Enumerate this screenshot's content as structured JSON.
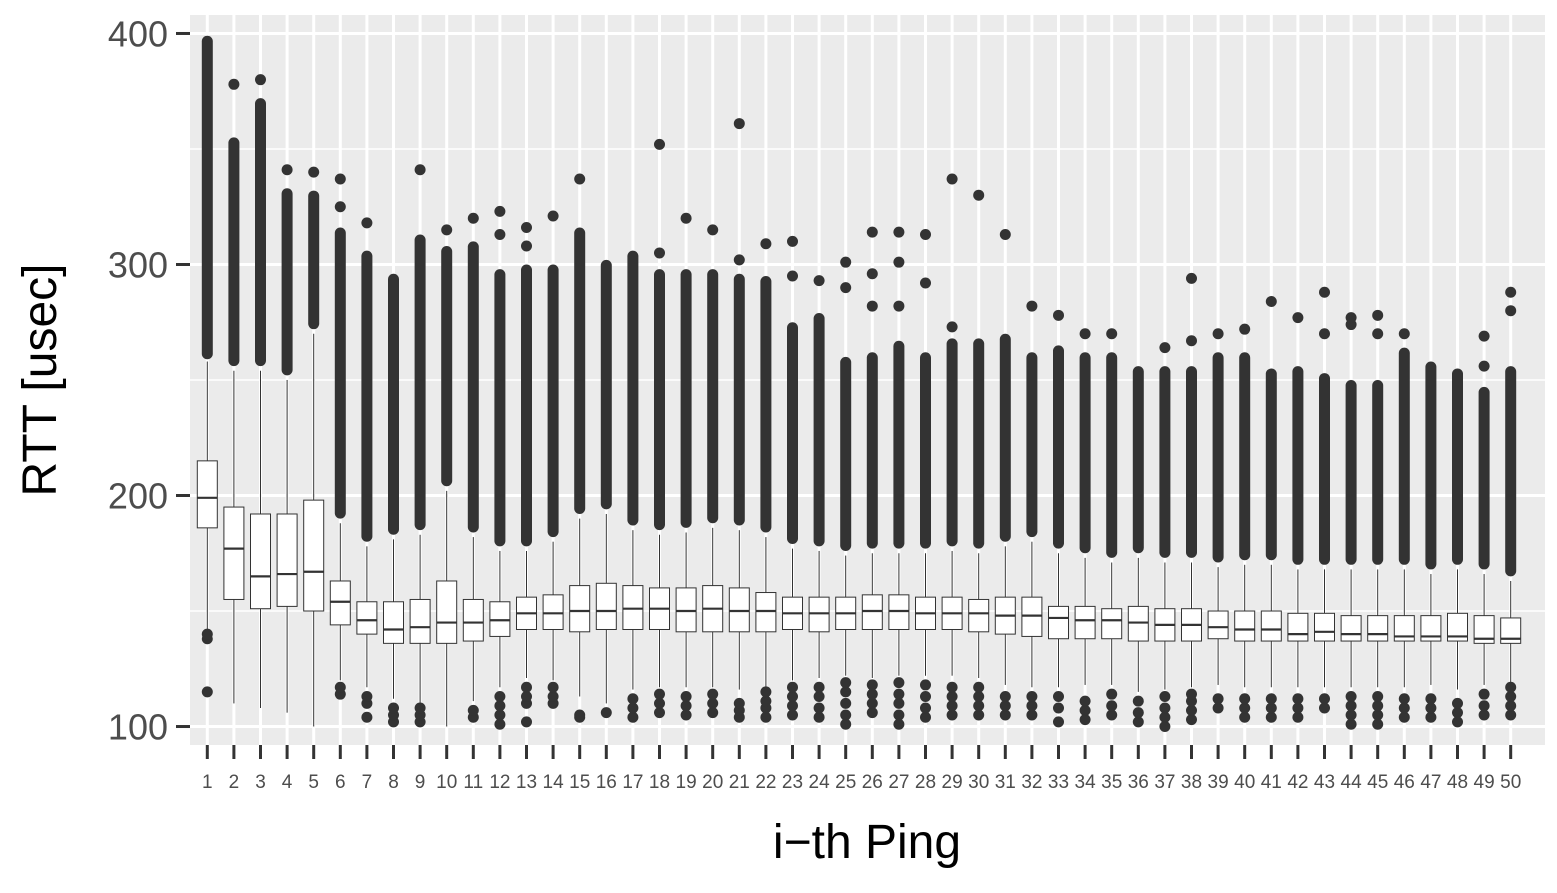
{
  "chart_data": {
    "type": "boxplot",
    "xlabel": "i−th Ping",
    "ylabel": "RTT [usec]",
    "ylim": [
      92,
      408
    ],
    "y_ticks": [
      100,
      200,
      300,
      400
    ],
    "grid": true,
    "categories": [
      "1",
      "2",
      "3",
      "4",
      "5",
      "6",
      "7",
      "8",
      "9",
      "10",
      "11",
      "12",
      "13",
      "14",
      "15",
      "16",
      "17",
      "18",
      "19",
      "20",
      "21",
      "22",
      "23",
      "24",
      "25",
      "26",
      "27",
      "28",
      "29",
      "30",
      "31",
      "32",
      "33",
      "34",
      "35",
      "36",
      "37",
      "38",
      "39",
      "40",
      "41",
      "42",
      "43",
      "44",
      "45",
      "46",
      "47",
      "48",
      "49",
      "50"
    ],
    "boxes": [
      {
        "q1": 186,
        "median": 199,
        "q3": 215,
        "whisker_low": 141,
        "whisker_high": 258,
        "outlier_low": [
          115,
          138,
          140
        ],
        "outlier_high_start": 259,
        "outlier_high_max": 399,
        "extra_high": []
      },
      {
        "q1": 155,
        "median": 177,
        "q3": 195,
        "whisker_low": 110,
        "whisker_high": 254,
        "outlier_low": [],
        "outlier_high_start": 256,
        "outlier_high_max": 355,
        "extra_high": [
          378
        ]
      },
      {
        "q1": 151,
        "median": 165,
        "q3": 192,
        "whisker_low": 108,
        "whisker_high": 254,
        "outlier_low": [],
        "outlier_high_start": 256,
        "outlier_high_max": 372,
        "extra_high": [
          380
        ]
      },
      {
        "q1": 152,
        "median": 166,
        "q3": 192,
        "whisker_low": 106,
        "whisker_high": 250,
        "outlier_low": [],
        "outlier_high_start": 252,
        "outlier_high_max": 333,
        "extra_high": [
          341
        ]
      },
      {
        "q1": 150,
        "median": 167,
        "q3": 198,
        "whisker_low": 100,
        "whisker_high": 270,
        "outlier_low": [],
        "outlier_high_start": 272,
        "outlier_high_max": 332,
        "extra_high": [
          340
        ]
      },
      {
        "q1": 144,
        "median": 154,
        "q3": 163,
        "whisker_low": 120,
        "whisker_high": 188,
        "outlier_low": [
          114,
          117
        ],
        "outlier_high_start": 190,
        "outlier_high_max": 316,
        "extra_high": [
          325,
          337
        ]
      },
      {
        "q1": 140,
        "median": 146,
        "q3": 154,
        "whisker_low": 117,
        "whisker_high": 178,
        "outlier_low": [
          104,
          110,
          113
        ],
        "outlier_high_start": 180,
        "outlier_high_max": 306,
        "extra_high": [
          318
        ]
      },
      {
        "q1": 136,
        "median": 142,
        "q3": 154,
        "whisker_low": 112,
        "whisker_high": 181,
        "outlier_low": [
          102,
          105,
          108
        ],
        "outlier_high_start": 183,
        "outlier_high_max": 296,
        "extra_high": []
      },
      {
        "q1": 136,
        "median": 143,
        "q3": 155,
        "whisker_low": 110,
        "whisker_high": 183,
        "outlier_low": [
          102,
          105,
          108
        ],
        "outlier_high_start": 185,
        "outlier_high_max": 313,
        "extra_high": [
          341
        ]
      },
      {
        "q1": 136,
        "median": 145,
        "q3": 163,
        "whisker_low": 100,
        "whisker_high": 202,
        "outlier_low": [],
        "outlier_high_start": 204,
        "outlier_high_max": 308,
        "extra_high": [
          315
        ]
      },
      {
        "q1": 137,
        "median": 145,
        "q3": 155,
        "whisker_low": 111,
        "whisker_high": 182,
        "outlier_low": [
          104,
          107
        ],
        "outlier_high_start": 184,
        "outlier_high_max": 310,
        "extra_high": [
          320
        ]
      },
      {
        "q1": 139,
        "median": 146,
        "q3": 154,
        "whisker_low": 117,
        "whisker_high": 176,
        "outlier_low": [
          101,
          105,
          109,
          113
        ],
        "outlier_high_start": 178,
        "outlier_high_max": 298,
        "extra_high": [
          313,
          323
        ]
      },
      {
        "q1": 142,
        "median": 149,
        "q3": 156,
        "whisker_low": 121,
        "whisker_high": 176,
        "outlier_low": [
          102,
          110,
          113,
          117
        ],
        "outlier_high_start": 178,
        "outlier_high_max": 300,
        "extra_high": [
          308,
          316
        ]
      },
      {
        "q1": 142,
        "median": 149,
        "q3": 157,
        "whisker_low": 120,
        "whisker_high": 180,
        "outlier_low": [
          110,
          113,
          117
        ],
        "outlier_high_start": 182,
        "outlier_high_max": 300,
        "extra_high": [
          321
        ]
      },
      {
        "q1": 141,
        "median": 150,
        "q3": 161,
        "whisker_low": 113,
        "whisker_high": 190,
        "outlier_low": [
          104,
          105
        ],
        "outlier_high_start": 192,
        "outlier_high_max": 316,
        "extra_high": [
          337
        ]
      },
      {
        "q1": 142,
        "median": 150,
        "q3": 162,
        "whisker_low": 110,
        "whisker_high": 192,
        "outlier_low": [
          106
        ],
        "outlier_high_start": 194,
        "outlier_high_max": 302,
        "extra_high": []
      },
      {
        "q1": 142,
        "median": 151,
        "q3": 161,
        "whisker_low": 116,
        "whisker_high": 185,
        "outlier_low": [
          104,
          108,
          112
        ],
        "outlier_high_start": 187,
        "outlier_high_max": 306,
        "extra_high": []
      },
      {
        "q1": 142,
        "median": 151,
        "q3": 160,
        "whisker_low": 117,
        "whisker_high": 183,
        "outlier_low": [
          106,
          110,
          114
        ],
        "outlier_high_start": 185,
        "outlier_high_max": 298,
        "extra_high": [
          305,
          352
        ]
      },
      {
        "q1": 141,
        "median": 150,
        "q3": 160,
        "whisker_low": 117,
        "whisker_high": 184,
        "outlier_low": [
          105,
          109,
          113
        ],
        "outlier_high_start": 186,
        "outlier_high_max": 298,
        "extra_high": [
          320
        ]
      },
      {
        "q1": 141,
        "median": 151,
        "q3": 161,
        "whisker_low": 117,
        "whisker_high": 186,
        "outlier_low": [
          106,
          110,
          114
        ],
        "outlier_high_start": 188,
        "outlier_high_max": 298,
        "extra_high": [
          315
        ]
      },
      {
        "q1": 141,
        "median": 150,
        "q3": 160,
        "whisker_low": 116,
        "whisker_high": 185,
        "outlier_low": [
          104,
          107,
          110
        ],
        "outlier_high_start": 187,
        "outlier_high_max": 296,
        "extra_high": [
          302,
          361
        ]
      },
      {
        "q1": 141,
        "median": 150,
        "q3": 158,
        "whisker_low": 117,
        "whisker_high": 182,
        "outlier_low": [
          104,
          108,
          111,
          115
        ],
        "outlier_high_start": 184,
        "outlier_high_max": 295,
        "extra_high": [
          309
        ]
      },
      {
        "q1": 142,
        "median": 149,
        "q3": 156,
        "whisker_low": 120,
        "whisker_high": 177,
        "outlier_low": [
          105,
          109,
          113,
          117
        ],
        "outlier_high_start": 179,
        "outlier_high_max": 275,
        "extra_high": [
          295,
          310
        ]
      },
      {
        "q1": 141,
        "median": 149,
        "q3": 156,
        "whisker_low": 121,
        "whisker_high": 176,
        "outlier_low": [
          104,
          108,
          113,
          117
        ],
        "outlier_high_start": 178,
        "outlier_high_max": 279,
        "extra_high": [
          293
        ]
      },
      {
        "q1": 142,
        "median": 149,
        "q3": 156,
        "whisker_low": 122,
        "whisker_high": 174,
        "outlier_low": [
          101,
          105,
          110,
          115,
          119
        ],
        "outlier_high_start": 176,
        "outlier_high_max": 260,
        "extra_high": [
          290,
          301
        ]
      },
      {
        "q1": 142,
        "median": 150,
        "q3": 157,
        "whisker_low": 121,
        "whisker_high": 175,
        "outlier_low": [
          106,
          110,
          114,
          118
        ],
        "outlier_high_start": 177,
        "outlier_high_max": 262,
        "extra_high": [
          282,
          296,
          314
        ]
      },
      {
        "q1": 142,
        "median": 150,
        "q3": 157,
        "whisker_low": 122,
        "whisker_high": 175,
        "outlier_low": [
          101,
          105,
          110,
          114,
          119
        ],
        "outlier_high_start": 177,
        "outlier_high_max": 267,
        "extra_high": [
          282,
          301,
          314
        ]
      },
      {
        "q1": 142,
        "median": 149,
        "q3": 156,
        "whisker_low": 122,
        "whisker_high": 175,
        "outlier_low": [
          104,
          108,
          113,
          118
        ],
        "outlier_high_start": 177,
        "outlier_high_max": 262,
        "extra_high": [
          292,
          313
        ]
      },
      {
        "q1": 142,
        "median": 149,
        "q3": 156,
        "whisker_low": 122,
        "whisker_high": 176,
        "outlier_low": [
          105,
          109,
          113,
          117
        ],
        "outlier_high_start": 178,
        "outlier_high_max": 268,
        "extra_high": [
          273,
          337
        ]
      },
      {
        "q1": 141,
        "median": 149,
        "q3": 155,
        "whisker_low": 121,
        "whisker_high": 175,
        "outlier_low": [
          105,
          109,
          113,
          117
        ],
        "outlier_high_start": 177,
        "outlier_high_max": 268,
        "extra_high": [
          330
        ]
      },
      {
        "q1": 140,
        "median": 148,
        "q3": 156,
        "whisker_low": 118,
        "whisker_high": 178,
        "outlier_low": [
          105,
          109,
          113
        ],
        "outlier_high_start": 180,
        "outlier_high_max": 270,
        "extra_high": [
          313
        ]
      },
      {
        "q1": 139,
        "median": 148,
        "q3": 156,
        "whisker_low": 117,
        "whisker_high": 180,
        "outlier_low": [
          105,
          109,
          113
        ],
        "outlier_high_start": 182,
        "outlier_high_max": 262,
        "extra_high": [
          282
        ]
      },
      {
        "q1": 138,
        "median": 147,
        "q3": 152,
        "whisker_low": 117,
        "whisker_high": 175,
        "outlier_low": [
          102,
          108,
          113
        ],
        "outlier_high_start": 177,
        "outlier_high_max": 265,
        "extra_high": [
          278
        ]
      },
      {
        "q1": 138,
        "median": 146,
        "q3": 152,
        "whisker_low": 118,
        "whisker_high": 173,
        "outlier_low": [
          103,
          107,
          111
        ],
        "outlier_high_start": 175,
        "outlier_high_max": 262,
        "extra_high": [
          270
        ]
      },
      {
        "q1": 138,
        "median": 146,
        "q3": 151,
        "whisker_low": 118,
        "whisker_high": 171,
        "outlier_low": [
          105,
          109,
          114
        ],
        "outlier_high_start": 173,
        "outlier_high_max": 262,
        "extra_high": [
          270
        ]
      },
      {
        "q1": 137,
        "median": 145,
        "q3": 152,
        "whisker_low": 115,
        "whisker_high": 173,
        "outlier_low": [
          102,
          106,
          111
        ],
        "outlier_high_start": 175,
        "outlier_high_max": 256,
        "extra_high": []
      },
      {
        "q1": 137,
        "median": 144,
        "q3": 151,
        "whisker_low": 116,
        "whisker_high": 171,
        "outlier_low": [
          100,
          104,
          108,
          113
        ],
        "outlier_high_start": 173,
        "outlier_high_max": 256,
        "extra_high": [
          264
        ]
      },
      {
        "q1": 137,
        "median": 144,
        "q3": 151,
        "whisker_low": 117,
        "whisker_high": 171,
        "outlier_low": [
          103,
          107,
          111,
          114
        ],
        "outlier_high_start": 173,
        "outlier_high_max": 256,
        "extra_high": [
          267,
          294
        ]
      },
      {
        "q1": 138,
        "median": 143,
        "q3": 150,
        "whisker_low": 118,
        "whisker_high": 169,
        "outlier_low": [
          108,
          112
        ],
        "outlier_high_start": 171,
        "outlier_high_max": 262,
        "extra_high": [
          270
        ]
      },
      {
        "q1": 137,
        "median": 142,
        "q3": 150,
        "whisker_low": 117,
        "whisker_high": 170,
        "outlier_low": [
          104,
          108,
          112
        ],
        "outlier_high_start": 172,
        "outlier_high_max": 262,
        "extra_high": [
          272
        ]
      },
      {
        "q1": 137,
        "median": 142,
        "q3": 150,
        "whisker_low": 117,
        "whisker_high": 170,
        "outlier_low": [
          104,
          108,
          112
        ],
        "outlier_high_start": 172,
        "outlier_high_max": 255,
        "extra_high": [
          284
        ]
      },
      {
        "q1": 137,
        "median": 140,
        "q3": 149,
        "whisker_low": 117,
        "whisker_high": 168,
        "outlier_low": [
          104,
          108,
          112
        ],
        "outlier_high_start": 170,
        "outlier_high_max": 256,
        "extra_high": [
          277
        ]
      },
      {
        "q1": 137,
        "median": 141,
        "q3": 149,
        "whisker_low": 117,
        "whisker_high": 168,
        "outlier_low": [
          108,
          112
        ],
        "outlier_high_start": 170,
        "outlier_high_max": 253,
        "extra_high": [
          270,
          288
        ]
      },
      {
        "q1": 137,
        "median": 140,
        "q3": 148,
        "whisker_low": 117,
        "whisker_high": 168,
        "outlier_low": [
          101,
          105,
          109,
          113
        ],
        "outlier_high_start": 170,
        "outlier_high_max": 250,
        "extra_high": [
          274,
          277
        ]
      },
      {
        "q1": 137,
        "median": 140,
        "q3": 148,
        "whisker_low": 117,
        "whisker_high": 168,
        "outlier_low": [
          101,
          105,
          109,
          113
        ],
        "outlier_high_start": 170,
        "outlier_high_max": 250,
        "extra_high": [
          270,
          278
        ]
      },
      {
        "q1": 137,
        "median": 139,
        "q3": 148,
        "whisker_low": 117,
        "whisker_high": 168,
        "outlier_low": [
          104,
          108,
          112
        ],
        "outlier_high_start": 170,
        "outlier_high_max": 264,
        "extra_high": [
          270
        ]
      },
      {
        "q1": 137,
        "median": 139,
        "q3": 148,
        "whisker_low": 118,
        "whisker_high": 166,
        "outlier_low": [
          104,
          108,
          112
        ],
        "outlier_high_start": 168,
        "outlier_high_max": 258,
        "extra_high": []
      },
      {
        "q1": 137,
        "median": 139,
        "q3": 149,
        "whisker_low": 116,
        "whisker_high": 168,
        "outlier_low": [
          102,
          106,
          110
        ],
        "outlier_high_start": 170,
        "outlier_high_max": 255,
        "extra_high": []
      },
      {
        "q1": 136,
        "median": 138,
        "q3": 148,
        "whisker_low": 118,
        "whisker_high": 166,
        "outlier_low": [
          105,
          109,
          114
        ],
        "outlier_high_start": 168,
        "outlier_high_max": 247,
        "extra_high": [
          256,
          269
        ]
      },
      {
        "q1": 136,
        "median": 138,
        "q3": 147,
        "whisker_low": 119,
        "whisker_high": 163,
        "outlier_low": [
          105,
          109,
          113,
          117
        ],
        "outlier_high_start": 165,
        "outlier_high_max": 256,
        "extra_high": [
          280,
          288
        ]
      }
    ]
  }
}
